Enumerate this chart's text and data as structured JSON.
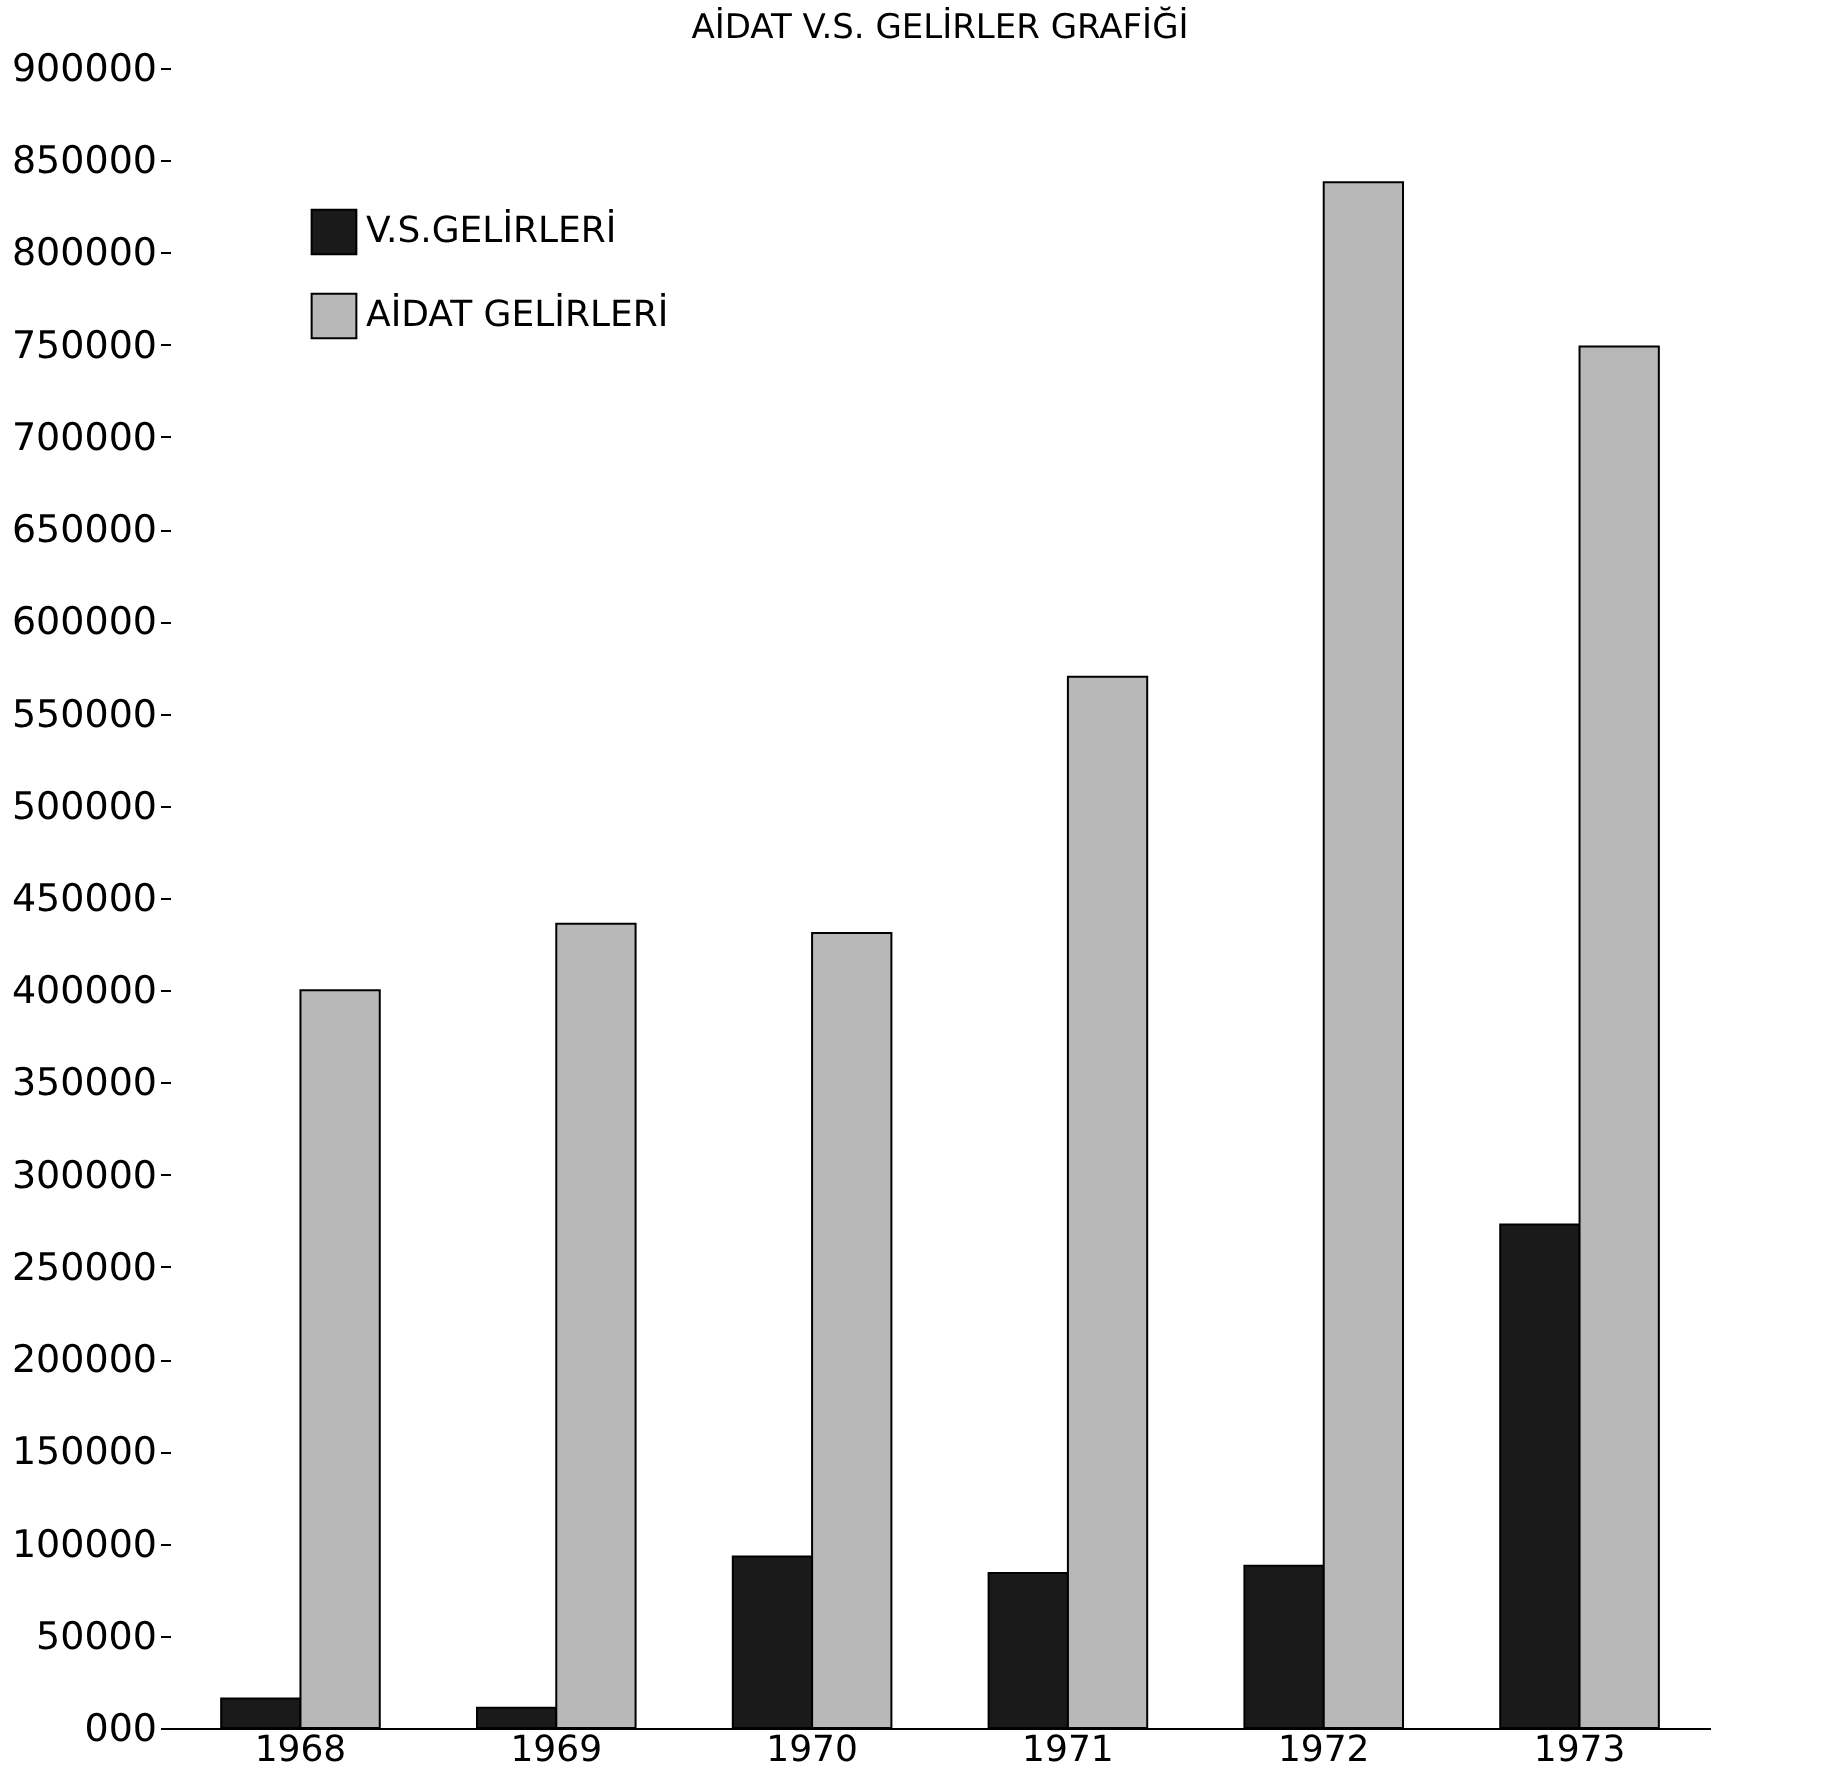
{
  "chart_data": {
    "type": "bar",
    "title": "AİDAT V.S. GELİRLER GRAFİĞİ",
    "categories": [
      "1968",
      "1969",
      "1970",
      "1971",
      "1972",
      "1973"
    ],
    "series": [
      {
        "name": "V.S.GELİRLERİ",
        "color": "#1a1a1a",
        "values": [
          16000,
          11000,
          93000,
          84000,
          88000,
          273000
        ]
      },
      {
        "name": "AİDAT GELİRLERİ",
        "color": "#b8b8b8",
        "values": [
          400000,
          436000,
          431000,
          570000,
          838000,
          749000
        ]
      }
    ],
    "ylim": [
      0,
      900000
    ],
    "yticks": [
      {
        "value": 0,
        "label": "000"
      },
      50000,
      100000,
      150000,
      200000,
      250000,
      300000,
      350000,
      400000,
      450000,
      500000,
      550000,
      600000,
      650000,
      700000,
      750000,
      800000,
      850000,
      900000
    ],
    "grid": false,
    "legend": "top left"
  }
}
